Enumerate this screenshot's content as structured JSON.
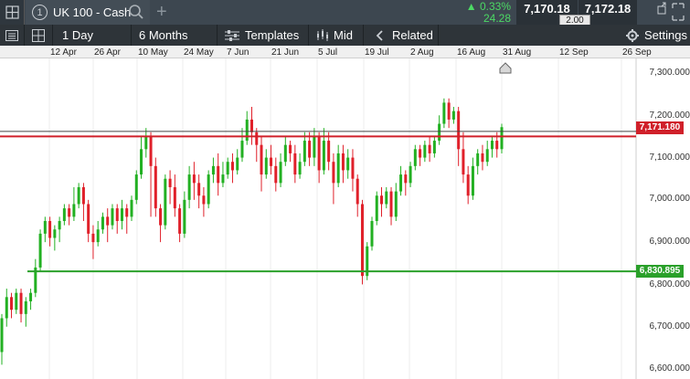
{
  "topbar": {
    "tab_number": "1",
    "instrument": "UK 100 - Cash",
    "change_pct": "▲ 0.33%",
    "change_abs": "24.28",
    "bid": "7,170.18",
    "ask": "7,172.18",
    "spread": "2.00"
  },
  "toolbar": {
    "interval": "1 Day",
    "range": "6 Months",
    "templates": "Templates",
    "price_type": "Mid",
    "related": "Related",
    "settings": "Settings"
  },
  "date_axis": [
    "12 Apr",
    "26 Apr",
    "10 May",
    "24 May",
    "7 Jun",
    "21 Jun",
    "5 Jul",
    "19 Jul",
    "2 Aug",
    "16 Aug",
    "31 Aug",
    "12 Sep",
    "26 Sep"
  ],
  "price_axis": [
    "7,300.000",
    "7,200.000",
    "7,100.000",
    "7,000.000",
    "6,900.000",
    "6,800.000",
    "6,700.000",
    "6,600.000"
  ],
  "horizontal_lines": {
    "current_price": "7,171.180",
    "support": "6,830.895"
  },
  "colors": {
    "up": "#22b022",
    "down": "#e0202a",
    "current_line": "#d0202a",
    "support_line": "#2aa02a",
    "resistance_line": "#444444"
  },
  "chart_data": {
    "type": "candlestick",
    "ylim": [
      6590,
      7360
    ],
    "candles": [
      [
        6640,
        6720,
        6610,
        6730
      ],
      [
        6720,
        6770,
        6700,
        6790
      ],
      [
        6770,
        6740,
        6720,
        6780
      ],
      [
        6740,
        6780,
        6730,
        6790
      ],
      [
        6780,
        6730,
        6710,
        6790
      ],
      [
        6730,
        6760,
        6700,
        6770
      ],
      [
        6760,
        6780,
        6740,
        6790
      ],
      [
        6780,
        6840,
        6770,
        6860
      ],
      [
        6840,
        6920,
        6830,
        6930
      ],
      [
        6920,
        6950,
        6900,
        6960
      ],
      [
        6950,
        6910,
        6890,
        6960
      ],
      [
        6910,
        6930,
        6880,
        6940
      ],
      [
        6930,
        6950,
        6900,
        6960
      ],
      [
        6950,
        6980,
        6940,
        6990
      ],
      [
        6980,
        6960,
        6940,
        6990
      ],
      [
        6960,
        6990,
        6950,
        7030
      ],
      [
        6990,
        7030,
        6980,
        7040
      ],
      [
        7030,
        6990,
        6950,
        7040
      ],
      [
        6990,
        6920,
        6900,
        7000
      ],
      [
        6920,
        6900,
        6860,
        6940
      ],
      [
        6900,
        6930,
        6890,
        6950
      ],
      [
        6930,
        6960,
        6920,
        6970
      ],
      [
        6960,
        6940,
        6900,
        6980
      ],
      [
        6940,
        6980,
        6930,
        6990
      ],
      [
        6980,
        6950,
        6920,
        6990
      ],
      [
        6950,
        6980,
        6930,
        7000
      ],
      [
        6980,
        6960,
        6920,
        6990
      ],
      [
        6960,
        7000,
        6950,
        7010
      ],
      [
        7000,
        7060,
        6990,
        7070
      ],
      [
        7060,
        7120,
        7050,
        7150
      ],
      [
        7120,
        7150,
        7100,
        7170
      ],
      [
        7150,
        7080,
        6960,
        7160
      ],
      [
        7080,
        6980,
        6960,
        7100
      ],
      [
        6980,
        6940,
        6900,
        6990
      ],
      [
        6940,
        7050,
        6930,
        7060
      ],
      [
        7050,
        7030,
        6990,
        7070
      ],
      [
        7030,
        6980,
        6960,
        7060
      ],
      [
        6980,
        6920,
        6900,
        6990
      ],
      [
        6920,
        7000,
        6910,
        7020
      ],
      [
        7000,
        7060,
        6980,
        7080
      ],
      [
        7060,
        7040,
        7000,
        7090
      ],
      [
        7040,
        7010,
        6980,
        7060
      ],
      [
        7010,
        6990,
        6960,
        7030
      ],
      [
        6990,
        7060,
        6980,
        7070
      ],
      [
        7060,
        7080,
        7040,
        7100
      ],
      [
        7080,
        7040,
        7010,
        7110
      ],
      [
        7040,
        7060,
        7030,
        7090
      ],
      [
        7060,
        7090,
        7050,
        7100
      ],
      [
        7090,
        7070,
        7040,
        7110
      ],
      [
        7070,
        7100,
        7060,
        7120
      ],
      [
        7100,
        7140,
        7090,
        7170
      ],
      [
        7140,
        7190,
        7130,
        7210
      ],
      [
        7190,
        7160,
        7130,
        7220
      ],
      [
        7160,
        7130,
        7090,
        7170
      ],
      [
        7130,
        7060,
        7020,
        7150
      ],
      [
        7060,
        7100,
        7050,
        7120
      ],
      [
        7100,
        7080,
        7060,
        7130
      ],
      [
        7080,
        7040,
        7020,
        7100
      ],
      [
        7040,
        7090,
        7030,
        7110
      ],
      [
        7090,
        7130,
        7080,
        7150
      ],
      [
        7130,
        7110,
        7090,
        7140
      ],
      [
        7110,
        7060,
        7040,
        7130
      ],
      [
        7060,
        7090,
        7050,
        7110
      ],
      [
        7090,
        7140,
        7080,
        7160
      ],
      [
        7140,
        7100,
        7080,
        7160
      ],
      [
        7100,
        7150,
        7080,
        7170
      ],
      [
        7150,
        7070,
        7040,
        7160
      ],
      [
        7070,
        7140,
        7060,
        7170
      ],
      [
        7140,
        7090,
        7070,
        7160
      ],
      [
        7090,
        7040,
        6990,
        7110
      ],
      [
        7040,
        7110,
        7030,
        7130
      ],
      [
        7110,
        7070,
        7040,
        7130
      ],
      [
        7070,
        7100,
        7050,
        7120
      ],
      [
        7100,
        7050,
        7020,
        7120
      ],
      [
        7050,
        6990,
        6960,
        7060
      ],
      [
        6990,
        6820,
        6800,
        7000
      ],
      [
        6820,
        6890,
        6810,
        6900
      ],
      [
        6890,
        6950,
        6880,
        6960
      ],
      [
        6950,
        7010,
        6940,
        7020
      ],
      [
        7010,
        6990,
        6960,
        7030
      ],
      [
        6990,
        7020,
        6980,
        7030
      ],
      [
        7020,
        6960,
        6940,
        7030
      ],
      [
        6960,
        7020,
        6950,
        7040
      ],
      [
        7020,
        7060,
        7010,
        7080
      ],
      [
        7060,
        7040,
        7010,
        7070
      ],
      [
        7040,
        7080,
        7030,
        7090
      ],
      [
        7080,
        7120,
        7070,
        7130
      ],
      [
        7120,
        7100,
        7080,
        7130
      ],
      [
        7100,
        7130,
        7090,
        7140
      ],
      [
        7130,
        7110,
        7090,
        7150
      ],
      [
        7110,
        7140,
        7100,
        7150
      ],
      [
        7140,
        7180,
        7130,
        7200
      ],
      [
        7180,
        7230,
        7170,
        7240
      ],
      [
        7230,
        7190,
        7170,
        7240
      ],
      [
        7190,
        7210,
        7180,
        7220
      ],
      [
        7210,
        7120,
        7080,
        7220
      ],
      [
        7120,
        7060,
        7040,
        7160
      ],
      [
        7060,
        7010,
        6990,
        7080
      ],
      [
        7010,
        7080,
        7000,
        7100
      ],
      [
        7080,
        7110,
        7060,
        7120
      ],
      [
        7110,
        7090,
        7070,
        7130
      ],
      [
        7090,
        7120,
        7080,
        7140
      ],
      [
        7120,
        7140,
        7100,
        7150
      ],
      [
        7140,
        7120,
        7100,
        7160
      ],
      [
        7120,
        7172,
        7110,
        7180
      ]
    ]
  }
}
